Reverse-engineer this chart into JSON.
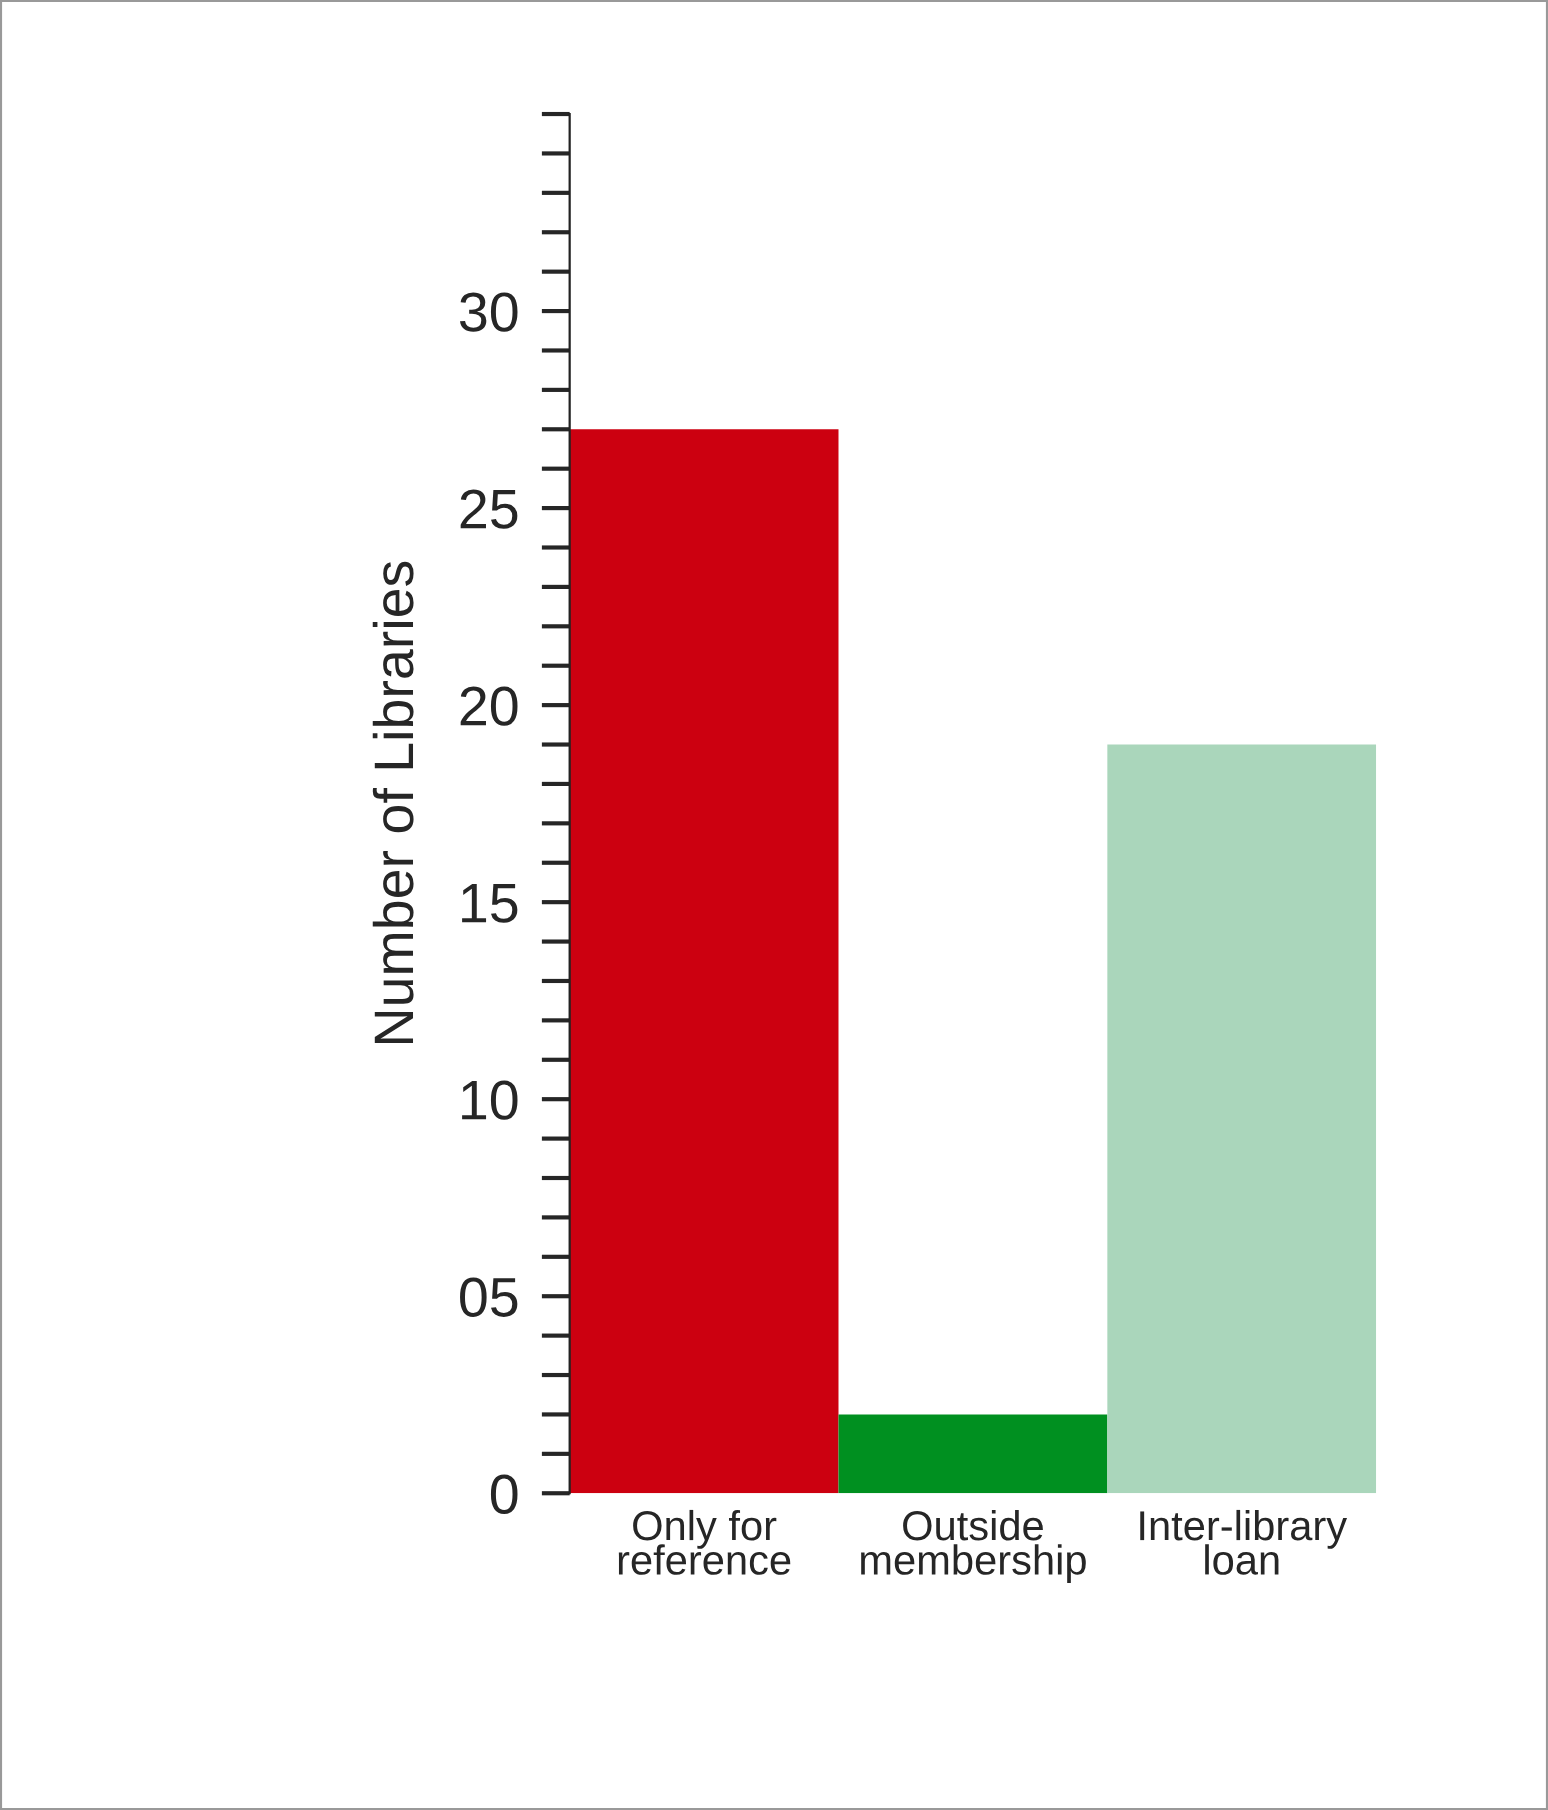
{
  "chart_data": {
    "type": "bar",
    "ylabel": "Number of Libraries",
    "categories": [
      "Only for\nreference",
      "Outside\nmembership",
      "Inter-library\nloan"
    ],
    "values": [
      27,
      2,
      19
    ],
    "colors": [
      "#cc0010",
      "#009020",
      "#aad6bb"
    ],
    "ylim": [
      0,
      35
    ],
    "yticks": [
      0,
      {
        "value": 1,
        "label": null
      },
      {
        "value": 2,
        "label": null
      },
      {
        "value": 3,
        "label": null
      },
      {
        "value": 4,
        "label": null
      },
      {
        "value": 5,
        "label": "05"
      },
      {
        "value": 6,
        "label": null
      },
      {
        "value": 7,
        "label": null
      },
      {
        "value": 8,
        "label": null
      },
      {
        "value": 9,
        "label": null
      },
      10,
      {
        "value": 11,
        "label": null
      },
      {
        "value": 12,
        "label": null
      },
      {
        "value": 13,
        "label": null
      },
      {
        "value": 14,
        "label": null
      },
      15,
      {
        "value": 16,
        "label": null
      },
      {
        "value": 17,
        "label": null
      },
      {
        "value": 18,
        "label": null
      },
      {
        "value": 19,
        "label": null
      },
      20,
      {
        "value": 21,
        "label": null
      },
      {
        "value": 22,
        "label": null
      },
      {
        "value": 23,
        "label": null
      },
      {
        "value": 24,
        "label": null
      },
      25,
      {
        "value": 26,
        "label": null
      },
      {
        "value": 27,
        "label": null
      },
      {
        "value": 28,
        "label": null
      },
      {
        "value": 29,
        "label": null
      },
      30,
      {
        "value": 31,
        "label": null
      },
      {
        "value": 32,
        "label": null
      },
      {
        "value": 33,
        "label": null
      },
      {
        "value": 34,
        "label": null
      },
      {
        "value": 35,
        "label": null
      }
    ],
    "grid": false,
    "legend": false
  }
}
